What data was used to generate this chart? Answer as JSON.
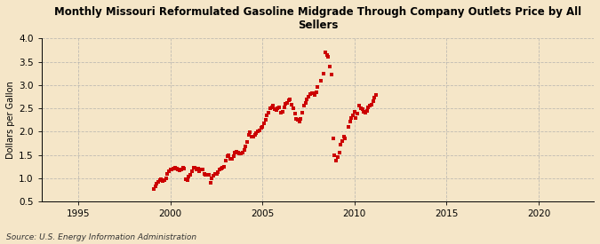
{
  "title": "Monthly Missouri Reformulated Gasoline Midgrade Through Company Outlets Price by All\nSellers",
  "ylabel": "Dollars per Gallon",
  "source": "Source: U.S. Energy Information Administration",
  "background_color": "#f5e6c8",
  "plot_background_color": "#f5e6c8",
  "marker_color": "#cc0000",
  "marker": "s",
  "marker_size": 3.5,
  "xlim": [
    1993.0,
    2023.0
  ],
  "ylim": [
    0.5,
    4.0
  ],
  "xticks": [
    1995,
    2000,
    2005,
    2010,
    2015,
    2020
  ],
  "yticks": [
    0.5,
    1.0,
    1.5,
    2.0,
    2.5,
    3.0,
    3.5,
    4.0
  ],
  "data": [
    [
      1999.08,
      0.76
    ],
    [
      1999.17,
      0.82
    ],
    [
      1999.25,
      0.88
    ],
    [
      1999.33,
      0.92
    ],
    [
      1999.42,
      0.96
    ],
    [
      1999.5,
      0.97
    ],
    [
      1999.58,
      0.94
    ],
    [
      1999.67,
      0.95
    ],
    [
      1999.75,
      1.0
    ],
    [
      1999.83,
      1.1
    ],
    [
      1999.92,
      1.14
    ],
    [
      2000.0,
      1.18
    ],
    [
      2000.08,
      1.19
    ],
    [
      2000.17,
      1.2
    ],
    [
      2000.25,
      1.22
    ],
    [
      2000.33,
      1.21
    ],
    [
      2000.42,
      1.18
    ],
    [
      2000.5,
      1.16
    ],
    [
      2000.58,
      1.18
    ],
    [
      2000.67,
      1.22
    ],
    [
      2000.75,
      1.2
    ],
    [
      2000.83,
      0.98
    ],
    [
      2000.92,
      0.95
    ],
    [
      2001.0,
      1.04
    ],
    [
      2001.08,
      1.08
    ],
    [
      2001.17,
      1.15
    ],
    [
      2001.25,
      1.22
    ],
    [
      2001.33,
      1.23
    ],
    [
      2001.42,
      1.19
    ],
    [
      2001.5,
      1.2
    ],
    [
      2001.58,
      1.15
    ],
    [
      2001.67,
      1.18
    ],
    [
      2001.75,
      1.18
    ],
    [
      2001.83,
      1.1
    ],
    [
      2001.92,
      1.08
    ],
    [
      2002.0,
      1.07
    ],
    [
      2002.08,
      1.08
    ],
    [
      2002.17,
      0.9
    ],
    [
      2002.25,
      1.0
    ],
    [
      2002.33,
      1.06
    ],
    [
      2002.42,
      1.1
    ],
    [
      2002.5,
      1.1
    ],
    [
      2002.58,
      1.12
    ],
    [
      2002.67,
      1.18
    ],
    [
      2002.75,
      1.2
    ],
    [
      2002.83,
      1.22
    ],
    [
      2002.92,
      1.25
    ],
    [
      2003.0,
      1.38
    ],
    [
      2003.08,
      1.48
    ],
    [
      2003.17,
      1.5
    ],
    [
      2003.25,
      1.42
    ],
    [
      2003.33,
      1.42
    ],
    [
      2003.42,
      1.48
    ],
    [
      2003.5,
      1.55
    ],
    [
      2003.58,
      1.56
    ],
    [
      2003.67,
      1.55
    ],
    [
      2003.75,
      1.53
    ],
    [
      2003.83,
      1.52
    ],
    [
      2003.92,
      1.55
    ],
    [
      2004.0,
      1.6
    ],
    [
      2004.08,
      1.68
    ],
    [
      2004.17,
      1.78
    ],
    [
      2004.25,
      1.92
    ],
    [
      2004.33,
      1.98
    ],
    [
      2004.42,
      1.9
    ],
    [
      2004.5,
      1.89
    ],
    [
      2004.58,
      1.92
    ],
    [
      2004.67,
      1.96
    ],
    [
      2004.75,
      2.0
    ],
    [
      2004.83,
      2.02
    ],
    [
      2004.92,
      2.08
    ],
    [
      2005.0,
      2.1
    ],
    [
      2005.08,
      2.18
    ],
    [
      2005.17,
      2.25
    ],
    [
      2005.25,
      2.35
    ],
    [
      2005.33,
      2.4
    ],
    [
      2005.42,
      2.5
    ],
    [
      2005.5,
      2.52
    ],
    [
      2005.58,
      2.55
    ],
    [
      2005.67,
      2.48
    ],
    [
      2005.75,
      2.46
    ],
    [
      2005.83,
      2.5
    ],
    [
      2005.92,
      2.52
    ],
    [
      2006.0,
      2.4
    ],
    [
      2006.08,
      2.42
    ],
    [
      2006.17,
      2.52
    ],
    [
      2006.25,
      2.6
    ],
    [
      2006.33,
      2.62
    ],
    [
      2006.42,
      2.68
    ],
    [
      2006.5,
      2.7
    ],
    [
      2006.58,
      2.58
    ],
    [
      2006.67,
      2.5
    ],
    [
      2006.75,
      2.38
    ],
    [
      2006.83,
      2.28
    ],
    [
      2006.92,
      2.25
    ],
    [
      2007.0,
      2.22
    ],
    [
      2007.08,
      2.28
    ],
    [
      2007.17,
      2.4
    ],
    [
      2007.25,
      2.55
    ],
    [
      2007.33,
      2.62
    ],
    [
      2007.42,
      2.7
    ],
    [
      2007.5,
      2.75
    ],
    [
      2007.58,
      2.8
    ],
    [
      2007.67,
      2.82
    ],
    [
      2007.75,
      2.82
    ],
    [
      2007.83,
      2.78
    ],
    [
      2007.92,
      2.85
    ],
    [
      2008.0,
      2.95
    ],
    [
      2008.17,
      3.1
    ],
    [
      2008.33,
      3.25
    ],
    [
      2008.42,
      3.7
    ],
    [
      2008.5,
      3.65
    ],
    [
      2008.58,
      3.6
    ],
    [
      2008.67,
      3.4
    ],
    [
      2008.75,
      3.22
    ],
    [
      2008.83,
      1.85
    ],
    [
      2008.92,
      1.5
    ],
    [
      2009.0,
      1.38
    ],
    [
      2009.08,
      1.45
    ],
    [
      2009.17,
      1.55
    ],
    [
      2009.25,
      1.72
    ],
    [
      2009.33,
      1.8
    ],
    [
      2009.42,
      1.9
    ],
    [
      2009.5,
      1.85
    ],
    [
      2009.67,
      2.1
    ],
    [
      2009.75,
      2.22
    ],
    [
      2009.83,
      2.3
    ],
    [
      2009.92,
      2.35
    ],
    [
      2010.0,
      2.42
    ],
    [
      2010.08,
      2.3
    ],
    [
      2010.17,
      2.38
    ],
    [
      2010.25,
      2.55
    ],
    [
      2010.33,
      2.5
    ],
    [
      2010.42,
      2.48
    ],
    [
      2010.5,
      2.42
    ],
    [
      2010.58,
      2.4
    ],
    [
      2010.67,
      2.45
    ],
    [
      2010.75,
      2.52
    ],
    [
      2010.83,
      2.55
    ],
    [
      2010.92,
      2.58
    ],
    [
      2011.0,
      2.65
    ],
    [
      2011.08,
      2.72
    ],
    [
      2011.17,
      2.78
    ]
  ]
}
